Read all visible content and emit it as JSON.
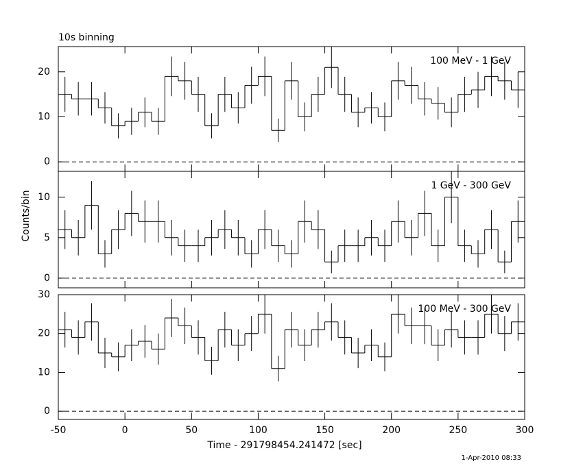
{
  "footer": "1-Apr-2010 08:33",
  "chart_data": [
    {
      "type": "histogram",
      "title": "10s binning",
      "annotation": "100 MeV - 1 GeV",
      "bins": [
        -50,
        -40,
        -30,
        -20,
        -10,
        0,
        10,
        20,
        30,
        40,
        50,
        60,
        70,
        80,
        90,
        100,
        110,
        120,
        130,
        140,
        150,
        160,
        170,
        180,
        190,
        200,
        210,
        220,
        230,
        240,
        250,
        260,
        270,
        280,
        290,
        300
      ],
      "values": [
        15,
        14,
        14,
        12,
        8,
        9,
        11,
        9,
        19,
        18,
        15,
        8,
        15,
        12,
        17,
        19,
        7,
        18,
        10,
        15,
        21,
        15,
        11,
        12,
        10,
        18,
        17,
        14,
        13,
        11,
        15,
        16,
        19,
        18,
        16
      ],
      "errors": [
        3.9,
        3.7,
        3.7,
        3.5,
        2.8,
        3,
        3.3,
        3,
        4.4,
        4.2,
        3.9,
        2.8,
        3.9,
        3.5,
        4.1,
        4.4,
        2.6,
        4.2,
        3.2,
        3.9,
        4.6,
        3.9,
        3.3,
        3.5,
        3.2,
        4.2,
        4.1,
        3.7,
        3.6,
        3.3,
        3.9,
        4,
        4.4,
        4.2,
        4
      ],
      "xlim": [
        -50,
        300
      ],
      "xticks": [
        -50,
        0,
        50,
        100,
        150,
        200,
        250,
        300
      ],
      "ylim": [
        -2.1,
        25.6
      ],
      "yticks": [
        0,
        10,
        20
      ],
      "color": "#000000"
    },
    {
      "type": "histogram",
      "annotation": "1 GeV - 300 GeV",
      "ylabel": "Counts/bin",
      "bins": [
        -50,
        -40,
        -30,
        -20,
        -10,
        0,
        10,
        20,
        30,
        40,
        50,
        60,
        70,
        80,
        90,
        100,
        110,
        120,
        130,
        140,
        150,
        160,
        170,
        180,
        190,
        200,
        210,
        220,
        230,
        240,
        250,
        260,
        270,
        280,
        290,
        300
      ],
      "values": [
        6,
        5,
        9,
        3,
        6,
        8,
        7,
        7,
        5,
        4,
        4,
        5,
        6,
        5,
        3,
        6,
        4,
        3,
        7,
        6,
        2,
        4,
        4,
        5,
        4,
        7,
        5,
        8,
        4,
        10,
        4,
        3,
        6,
        2,
        7
      ],
      "errors": [
        2.4,
        2.2,
        3,
        1.7,
        2.4,
        2.8,
        2.6,
        2.6,
        2.2,
        2,
        2,
        2.2,
        2.4,
        2.2,
        1.7,
        2.4,
        2,
        1.7,
        2.6,
        2.4,
        1.4,
        2,
        2,
        2.2,
        2,
        2.6,
        2.2,
        2.8,
        2,
        3.2,
        2,
        1.7,
        2.4,
        1.4,
        2.6
      ],
      "xlim": [
        -50,
        300
      ],
      "xticks": [
        -50,
        0,
        50,
        100,
        150,
        200,
        250,
        300
      ],
      "ylim": [
        -1.2,
        13.2
      ],
      "yticks": [
        0,
        5,
        10
      ],
      "color": "#000000"
    },
    {
      "type": "histogram",
      "annotation": "100 MeV - 300 GeV",
      "xlabel": "Time - 291798454.241472 [sec]",
      "bins": [
        -50,
        -40,
        -30,
        -20,
        -10,
        0,
        10,
        20,
        30,
        40,
        50,
        60,
        70,
        80,
        90,
        100,
        110,
        120,
        130,
        140,
        150,
        160,
        170,
        180,
        190,
        200,
        210,
        220,
        230,
        240,
        250,
        260,
        270,
        280,
        290,
        300
      ],
      "values": [
        21,
        19,
        23,
        15,
        14,
        17,
        18,
        16,
        24,
        22,
        19,
        13,
        21,
        17,
        20,
        25,
        11,
        21,
        17,
        21,
        23,
        19,
        15,
        17,
        14,
        25,
        22,
        22,
        17,
        21,
        19,
        19,
        25,
        20,
        23
      ],
      "errors": [
        4.6,
        4.4,
        4.8,
        3.9,
        3.7,
        4.1,
        4.2,
        4,
        4.9,
        4.7,
        4.4,
        3.6,
        4.6,
        4.1,
        4.5,
        5,
        3.3,
        4.6,
        4.1,
        4.6,
        4.8,
        4.4,
        3.9,
        4.1,
        3.7,
        5,
        4.7,
        4.7,
        4.1,
        4.6,
        4.4,
        4.4,
        5,
        4.5,
        4.8
      ],
      "xlim": [
        -50,
        300
      ],
      "xticks": [
        -50,
        0,
        50,
        100,
        150,
        200,
        250,
        300
      ],
      "ylim": [
        -2.1,
        30
      ],
      "yticks": [
        0,
        10,
        20,
        30
      ],
      "color": "#000000"
    }
  ]
}
